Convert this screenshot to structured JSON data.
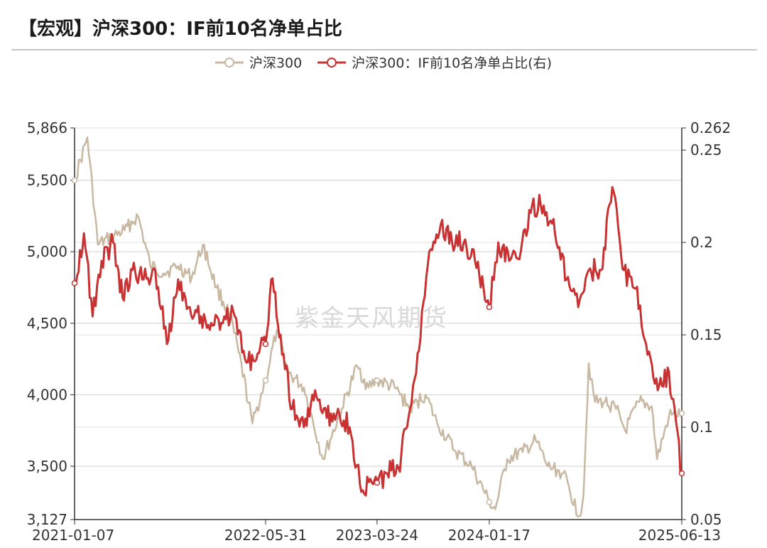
{
  "title": "【宏观】沪深300：IF前10名净单占比",
  "watermark": "紫金天风期货",
  "colors": {
    "series1": "#c8b8a2",
    "series2": "#c83232",
    "grid": "#d0d0d0",
    "axis": "#333333"
  },
  "chart_data": {
    "type": "line",
    "title": "【宏观】沪深300：IF前10名净单占比",
    "legend_position": "top-center",
    "grid": true,
    "x_ticks": [
      "2021-01-07",
      "2022-05-31",
      "2023-03-24",
      "2024-01-17",
      "2025-06-13"
    ],
    "y_left": {
      "min": 3127,
      "max": 5866,
      "ticks": [
        "3,127",
        "3,500",
        "4,000",
        "4,500",
        "5,000",
        "5,500",
        "5,866"
      ]
    },
    "y_right": {
      "min": 0.05,
      "max": 0.262,
      "ticks": [
        "0.05",
        "0.1",
        "0.15",
        "0.2",
        "0.25",
        "0.262"
      ]
    },
    "series": [
      {
        "name": "沪深300",
        "axis": "left",
        "points": [
          [
            "2021-01-07",
            5500
          ],
          [
            "2021-02-10",
            5800
          ],
          [
            "2021-03-10",
            5050
          ],
          [
            "2021-04-15",
            5100
          ],
          [
            "2021-05-20",
            5150
          ],
          [
            "2021-06-25",
            5250
          ],
          [
            "2021-07-28",
            4900
          ],
          [
            "2021-09-01",
            4850
          ],
          [
            "2021-10-10",
            4900
          ],
          [
            "2021-11-15",
            4820
          ],
          [
            "2021-12-15",
            5050
          ],
          [
            "2022-01-20",
            4750
          ],
          [
            "2022-02-25",
            4550
          ],
          [
            "2022-03-20",
            4300
          ],
          [
            "2022-04-26",
            3800
          ],
          [
            "2022-05-31",
            4100
          ],
          [
            "2022-06-30",
            4450
          ],
          [
            "2022-08-01",
            4150
          ],
          [
            "2022-09-10",
            4050
          ],
          [
            "2022-10-31",
            3550
          ],
          [
            "2022-12-20",
            3900
          ],
          [
            "2023-01-30",
            4200
          ],
          [
            "2023-03-01",
            4050
          ],
          [
            "2023-03-24",
            4100
          ],
          [
            "2023-05-10",
            4050
          ],
          [
            "2023-06-20",
            3900
          ],
          [
            "2023-07-31",
            4000
          ],
          [
            "2023-08-31",
            3800
          ],
          [
            "2023-10-20",
            3600
          ],
          [
            "2023-12-01",
            3500
          ],
          [
            "2024-01-17",
            3250
          ],
          [
            "2024-02-02",
            3200
          ],
          [
            "2024-03-05",
            3550
          ],
          [
            "2024-04-15",
            3600
          ],
          [
            "2024-05-20",
            3680
          ],
          [
            "2024-06-20",
            3500
          ],
          [
            "2024-08-01",
            3450
          ],
          [
            "2024-09-13",
            3150
          ],
          [
            "2024-09-24",
            3300
          ],
          [
            "2024-10-08",
            4220
          ],
          [
            "2024-10-25",
            3950
          ],
          [
            "2024-11-20",
            3950
          ],
          [
            "2024-12-20",
            3900
          ],
          [
            "2025-01-13",
            3750
          ],
          [
            "2025-02-20",
            3950
          ],
          [
            "2025-03-25",
            3920
          ],
          [
            "2025-04-08",
            3550
          ],
          [
            "2025-05-10",
            3850
          ],
          [
            "2025-06-13",
            3870
          ]
        ]
      },
      {
        "name": "沪深300：IF前10名净单占比(右)",
        "axis": "right",
        "points": [
          [
            "2021-01-07",
            0.178
          ],
          [
            "2021-02-01",
            0.205
          ],
          [
            "2021-02-24",
            0.16
          ],
          [
            "2021-03-20",
            0.19
          ],
          [
            "2021-04-20",
            0.2
          ],
          [
            "2021-05-15",
            0.17
          ],
          [
            "2021-06-10",
            0.185
          ],
          [
            "2021-07-10",
            0.18
          ],
          [
            "2021-08-10",
            0.185
          ],
          [
            "2021-09-10",
            0.145
          ],
          [
            "2021-10-10",
            0.18
          ],
          [
            "2021-11-10",
            0.165
          ],
          [
            "2021-12-10",
            0.16
          ],
          [
            "2022-01-10",
            0.155
          ],
          [
            "2022-02-10",
            0.16
          ],
          [
            "2022-03-10",
            0.16
          ],
          [
            "2022-04-10",
            0.135
          ],
          [
            "2022-05-10",
            0.14
          ],
          [
            "2022-05-31",
            0.145
          ],
          [
            "2022-06-15",
            0.18
          ],
          [
            "2022-07-10",
            0.15
          ],
          [
            "2022-08-10",
            0.11
          ],
          [
            "2022-09-10",
            0.1
          ],
          [
            "2022-10-10",
            0.12
          ],
          [
            "2022-11-10",
            0.105
          ],
          [
            "2022-12-10",
            0.11
          ],
          [
            "2023-01-10",
            0.1
          ],
          [
            "2023-02-10",
            0.065
          ],
          [
            "2023-03-10",
            0.07
          ],
          [
            "2023-03-24",
            0.07
          ],
          [
            "2023-04-20",
            0.075
          ],
          [
            "2023-05-20",
            0.078
          ],
          [
            "2023-06-20",
            0.11
          ],
          [
            "2023-07-10",
            0.14
          ],
          [
            "2023-08-10",
            0.195
          ],
          [
            "2023-09-10",
            0.21
          ],
          [
            "2023-10-10",
            0.2
          ],
          [
            "2023-11-10",
            0.2
          ],
          [
            "2023-12-10",
            0.19
          ],
          [
            "2024-01-17",
            0.165
          ],
          [
            "2024-02-10",
            0.2
          ],
          [
            "2024-03-10",
            0.19
          ],
          [
            "2024-04-10",
            0.195
          ],
          [
            "2024-05-10",
            0.22
          ],
          [
            "2024-06-10",
            0.22
          ],
          [
            "2024-07-10",
            0.205
          ],
          [
            "2024-08-10",
            0.18
          ],
          [
            "2024-09-10",
            0.165
          ],
          [
            "2024-10-08",
            0.185
          ],
          [
            "2024-11-10",
            0.185
          ],
          [
            "2024-12-10",
            0.23
          ],
          [
            "2025-01-10",
            0.185
          ],
          [
            "2025-02-10",
            0.175
          ],
          [
            "2025-03-10",
            0.145
          ],
          [
            "2025-04-10",
            0.12
          ],
          [
            "2025-05-10",
            0.13
          ],
          [
            "2025-06-13",
            0.075
          ]
        ]
      }
    ]
  }
}
